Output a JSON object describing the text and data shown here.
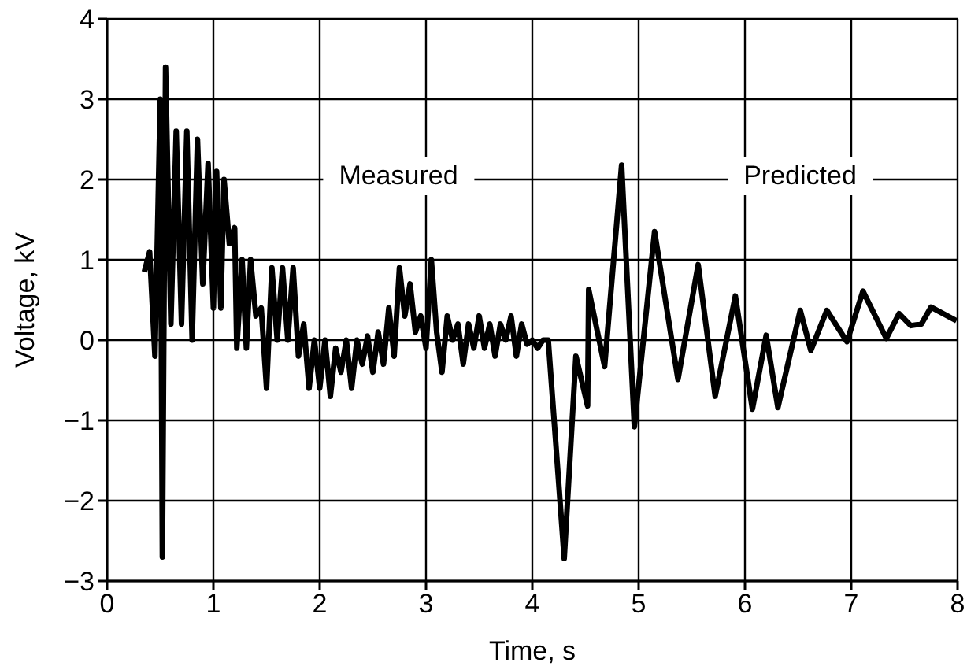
{
  "chart_data": {
    "type": "line",
    "xlabel": "Time, s",
    "ylabel": "Voltage, kV",
    "xlim": [
      0,
      8
    ],
    "ylim": [
      -3,
      4
    ],
    "xticks": [
      0,
      1,
      2,
      3,
      4,
      5,
      6,
      7,
      8
    ],
    "yticks": [
      -3,
      -2,
      -1,
      0,
      1,
      2,
      3,
      4
    ],
    "grid": true,
    "line_style": "solid",
    "marker": "none",
    "annotations": [
      "Measured",
      "Predicted"
    ],
    "series": [
      {
        "color": "#000000",
        "x": [
          0.35,
          0.4,
          0.45,
          0.5,
          0.52,
          0.55,
          0.6,
          0.65,
          0.7,
          0.75,
          0.8,
          0.85,
          0.9,
          0.95,
          1.0,
          1.03,
          1.07,
          1.1,
          1.15,
          1.2,
          1.22,
          1.27,
          1.31,
          1.35,
          1.4,
          1.45,
          1.5,
          1.55,
          1.6,
          1.65,
          1.7,
          1.75,
          1.8,
          1.85,
          1.9,
          1.95,
          2.0,
          2.05,
          2.1,
          2.15,
          2.2,
          2.25,
          2.3,
          2.35,
          2.4,
          2.45,
          2.5,
          2.55,
          2.6,
          2.65,
          2.7,
          2.75,
          2.8,
          2.85,
          2.9,
          2.95,
          3.0,
          3.05,
          3.1,
          3.15,
          3.2,
          3.25,
          3.3,
          3.35,
          3.4,
          3.45,
          3.5,
          3.55,
          3.6,
          3.65,
          3.7,
          3.75,
          3.8,
          3.85,
          3.9,
          3.95,
          4.0,
          4.05,
          4.1,
          4.15,
          4.3,
          4.41,
          4.52,
          4.53,
          4.68,
          4.84,
          4.96,
          5.15,
          5.37,
          5.56,
          5.72,
          5.91,
          6.07,
          6.2,
          6.31,
          6.52,
          6.62,
          6.77,
          6.96,
          7.11,
          7.33,
          7.45,
          7.56,
          7.66,
          7.75,
          7.99
        ],
        "values": [
          0.85,
          1.1,
          -0.2,
          3.0,
          -2.7,
          3.4,
          0.2,
          2.6,
          0.2,
          2.6,
          0.0,
          2.5,
          0.7,
          2.2,
          0.4,
          2.1,
          0.4,
          2.0,
          1.2,
          1.4,
          -0.1,
          1.0,
          -0.1,
          1.0,
          0.3,
          0.4,
          -0.6,
          0.9,
          0.0,
          0.9,
          0.0,
          0.9,
          -0.2,
          0.2,
          -0.6,
          0.0,
          -0.6,
          0.0,
          -0.7,
          -0.1,
          -0.4,
          0.0,
          -0.6,
          0.0,
          -0.3,
          0.05,
          -0.4,
          0.1,
          -0.3,
          0.4,
          -0.2,
          0.9,
          0.3,
          0.7,
          0.1,
          0.3,
          -0.1,
          1.0,
          0.1,
          -0.4,
          0.3,
          0.0,
          0.2,
          -0.3,
          0.2,
          -0.1,
          0.3,
          -0.1,
          0.2,
          -0.2,
          0.2,
          0.0,
          0.3,
          -0.2,
          0.2,
          -0.05,
          0.0,
          -0.1,
          0.0,
          0.0,
          -2.72,
          -0.2,
          -0.82,
          0.63,
          -0.33,
          2.18,
          -1.08,
          1.35,
          -0.49,
          0.94,
          -0.7,
          0.55,
          -0.86,
          0.06,
          -0.84,
          0.37,
          -0.13,
          0.37,
          -0.02,
          0.61,
          0.02,
          0.33,
          0.18,
          0.2,
          0.41,
          0.24
        ]
      }
    ]
  }
}
